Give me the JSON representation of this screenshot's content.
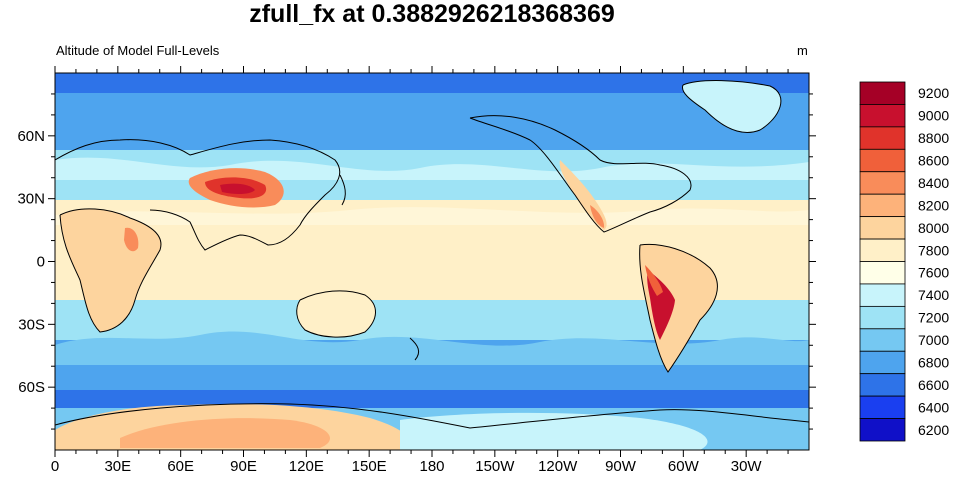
{
  "title": "zfull_fx at 0.3882926218368369",
  "left_string": "Altitude of Model Full-Levels",
  "right_string": "m",
  "x_ticks": [
    "0",
    "30E",
    "60E",
    "90E",
    "120E",
    "150E",
    "180",
    "150W",
    "120W",
    "90W",
    "60W",
    "30W"
  ],
  "y_ticks": [
    "60N",
    "30N",
    "0",
    "30S",
    "60S"
  ],
  "colorbar": {
    "labels": [
      "9200",
      "9000",
      "8800",
      "8600",
      "8400",
      "8200",
      "8000",
      "7800",
      "7600",
      "7400",
      "7200",
      "7000",
      "6800",
      "6600",
      "6400",
      "6200"
    ],
    "colors": [
      "#a50026",
      "#c8102e",
      "#e0332b",
      "#f0603a",
      "#f98c5a",
      "#fdb27a",
      "#fdd49e",
      "#fff0c8",
      "#ffffe8",
      "#c8f4fb",
      "#9ee3f5",
      "#75c8f2",
      "#4ea4ee",
      "#2e73e8",
      "#1a3ff0",
      "#1010c8"
    ]
  }
}
